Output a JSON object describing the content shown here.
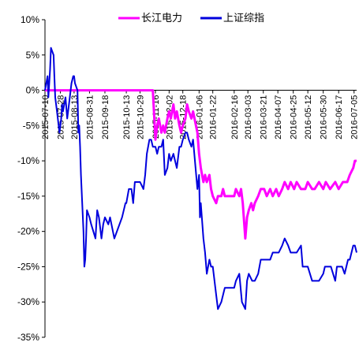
{
  "chart_data": {
    "type": "line",
    "title": "",
    "xlabel": "",
    "ylabel": "",
    "ylim": [
      -35,
      10
    ],
    "y_ticks": [
      10,
      5,
      0,
      -5,
      -10,
      -15,
      -20,
      -25,
      -30,
      -35
    ],
    "y_tick_labels": [
      "10%",
      "5%",
      "0%",
      "-5%",
      "-10%",
      "-15%",
      "-20%",
      "-25%",
      "-30%",
      "-35%"
    ],
    "x_tick_labels": [
      "2015-07-10",
      "2015-07-28",
      "2015-08-13",
      "2015-08-31",
      "2015-09-18",
      "2015-10-13",
      "2015-10-29",
      "2015-11-16",
      "2015-12-02",
      "2015-12-18",
      "2016-01-06",
      "2016-01-22",
      "2016-02-16",
      "2016-03-03",
      "2016-03-21",
      "2016-04-07",
      "2016-04-25",
      "2016-05-12",
      "2016-05-30",
      "2016-06-17",
      "2016-07-05"
    ],
    "x_range": [
      "2015-07-10",
      "2016-07-08"
    ],
    "grid": false,
    "legend_position": "top-center",
    "series": [
      {
        "name": "长江电力",
        "color": "#ff00ff",
        "points": [
          [
            "2015-07-10",
            0
          ],
          [
            "2015-08-13",
            0
          ],
          [
            "2015-09-18",
            0
          ],
          [
            "2015-10-29",
            0
          ],
          [
            "2015-11-13",
            0
          ],
          [
            "2015-11-16",
            -7
          ],
          [
            "2015-11-18",
            -5
          ],
          [
            "2015-11-20",
            -4
          ],
          [
            "2015-11-23",
            -6
          ],
          [
            "2015-11-25",
            -5
          ],
          [
            "2015-11-27",
            -6
          ],
          [
            "2015-11-30",
            -4
          ],
          [
            "2015-12-02",
            -3
          ],
          [
            "2015-12-04",
            -4
          ],
          [
            "2015-12-07",
            -2
          ],
          [
            "2015-12-09",
            -4
          ],
          [
            "2015-12-11",
            -3
          ],
          [
            "2015-12-14",
            -5
          ],
          [
            "2015-12-16",
            -6
          ],
          [
            "2015-12-18",
            -5
          ],
          [
            "2015-12-21",
            -4
          ],
          [
            "2015-12-23",
            -2
          ],
          [
            "2015-12-25",
            -3
          ],
          [
            "2015-12-28",
            -4
          ],
          [
            "2015-12-30",
            -3
          ],
          [
            "2016-01-04",
            -6
          ],
          [
            "2016-01-06",
            -9
          ],
          [
            "2016-01-08",
            -11
          ],
          [
            "2016-01-11",
            -13
          ],
          [
            "2016-01-13",
            -12
          ],
          [
            "2016-01-15",
            -13
          ],
          [
            "2016-01-18",
            -12
          ],
          [
            "2016-01-20",
            -14
          ],
          [
            "2016-01-22",
            -15
          ],
          [
            "2016-01-26",
            -16
          ],
          [
            "2016-01-28",
            -15
          ],
          [
            "2016-02-01",
            -15
          ],
          [
            "2016-02-03",
            -14
          ],
          [
            "2016-02-05",
            -15
          ],
          [
            "2016-02-16",
            -15
          ],
          [
            "2016-02-18",
            -14
          ],
          [
            "2016-02-22",
            -15
          ],
          [
            "2016-02-24",
            -14
          ],
          [
            "2016-02-26",
            -16
          ],
          [
            "2016-02-29",
            -21
          ],
          [
            "2016-03-02",
            -18
          ],
          [
            "2016-03-04",
            -17
          ],
          [
            "2016-03-07",
            -16
          ],
          [
            "2016-03-09",
            -17
          ],
          [
            "2016-03-11",
            -16
          ],
          [
            "2016-03-15",
            -15
          ],
          [
            "2016-03-18",
            -14
          ],
          [
            "2016-03-22",
            -14
          ],
          [
            "2016-03-25",
            -15
          ],
          [
            "2016-03-29",
            -14
          ],
          [
            "2016-04-01",
            -15
          ],
          [
            "2016-04-05",
            -14
          ],
          [
            "2016-04-08",
            -15
          ],
          [
            "2016-04-12",
            -14
          ],
          [
            "2016-04-15",
            -13
          ],
          [
            "2016-04-19",
            -14
          ],
          [
            "2016-04-22",
            -13
          ],
          [
            "2016-04-26",
            -14
          ],
          [
            "2016-04-29",
            -13
          ],
          [
            "2016-05-04",
            -14
          ],
          [
            "2016-05-09",
            -14
          ],
          [
            "2016-05-12",
            -13
          ],
          [
            "2016-05-17",
            -14
          ],
          [
            "2016-05-20",
            -14
          ],
          [
            "2016-05-25",
            -13
          ],
          [
            "2016-05-30",
            -14
          ],
          [
            "2016-06-02",
            -13
          ],
          [
            "2016-06-07",
            -14
          ],
          [
            "2016-06-13",
            -13
          ],
          [
            "2016-06-17",
            -14
          ],
          [
            "2016-06-22",
            -13
          ],
          [
            "2016-06-27",
            -13
          ],
          [
            "2016-06-30",
            -12
          ],
          [
            "2016-07-04",
            -11
          ],
          [
            "2016-07-06",
            -10
          ],
          [
            "2016-07-08",
            -10
          ]
        ]
      },
      {
        "name": "上证综指",
        "color": "#0000dd",
        "points": [
          [
            "2015-07-10",
            0
          ],
          [
            "2015-07-13",
            2
          ],
          [
            "2015-07-14",
            -1
          ],
          [
            "2015-07-15",
            1
          ],
          [
            "2015-07-16",
            3
          ],
          [
            "2015-07-17",
            6
          ],
          [
            "2015-07-20",
            5
          ],
          [
            "2015-07-21",
            2
          ],
          [
            "2015-07-22",
            -1
          ],
          [
            "2015-07-24",
            -3
          ],
          [
            "2015-07-27",
            -6
          ],
          [
            "2015-07-28",
            -5
          ],
          [
            "2015-07-29",
            -4
          ],
          [
            "2015-07-30",
            -2
          ],
          [
            "2015-07-31",
            -3
          ],
          [
            "2015-08-03",
            -1
          ],
          [
            "2015-08-05",
            -4
          ],
          [
            "2015-08-07",
            -2
          ],
          [
            "2015-08-10",
            1
          ],
          [
            "2015-08-12",
            2
          ],
          [
            "2015-08-13",
            2
          ],
          [
            "2015-08-14",
            1
          ],
          [
            "2015-08-17",
            0
          ],
          [
            "2015-08-18",
            -6
          ],
          [
            "2015-08-19",
            -5
          ],
          [
            "2015-08-20",
            -8
          ],
          [
            "2015-08-21",
            -12
          ],
          [
            "2015-08-24",
            -20
          ],
          [
            "2015-08-25",
            -25
          ],
          [
            "2015-08-26",
            -24
          ],
          [
            "2015-08-27",
            -21
          ],
          [
            "2015-08-28",
            -17
          ],
          [
            "2015-08-31",
            -18
          ],
          [
            "2015-09-02",
            -19
          ],
          [
            "2015-09-07",
            -21
          ],
          [
            "2015-09-09",
            -17
          ],
          [
            "2015-09-11",
            -18
          ],
          [
            "2015-09-14",
            -21
          ],
          [
            "2015-09-16",
            -19
          ],
          [
            "2015-09-18",
            -18
          ],
          [
            "2015-09-22",
            -19
          ],
          [
            "2015-09-24",
            -18
          ],
          [
            "2015-09-29",
            -21
          ],
          [
            "2015-10-08",
            -18
          ],
          [
            "2015-10-12",
            -16
          ],
          [
            "2015-10-13",
            -16
          ],
          [
            "2015-10-16",
            -14
          ],
          [
            "2015-10-19",
            -14
          ],
          [
            "2015-10-21",
            -16
          ],
          [
            "2015-10-23",
            -13
          ],
          [
            "2015-10-26",
            -13
          ],
          [
            "2015-10-29",
            -13
          ],
          [
            "2015-11-02",
            -14
          ],
          [
            "2015-11-04",
            -12
          ],
          [
            "2015-11-06",
            -9
          ],
          [
            "2015-11-09",
            -7
          ],
          [
            "2015-11-11",
            -7
          ],
          [
            "2015-11-13",
            -8
          ],
          [
            "2015-11-16",
            -8
          ],
          [
            "2015-11-18",
            -9
          ],
          [
            "2015-11-20",
            -8
          ],
          [
            "2015-11-23",
            -8
          ],
          [
            "2015-11-25",
            -7
          ],
          [
            "2015-11-27",
            -12
          ],
          [
            "2015-11-30",
            -11
          ],
          [
            "2015-12-02",
            -9
          ],
          [
            "2015-12-04",
            -10
          ],
          [
            "2015-12-07",
            -9
          ],
          [
            "2015-12-09",
            -10
          ],
          [
            "2015-12-11",
            -11
          ],
          [
            "2015-12-14",
            -8
          ],
          [
            "2015-12-16",
            -8
          ],
          [
            "2015-12-18",
            -7
          ],
          [
            "2015-12-21",
            -6
          ],
          [
            "2015-12-23",
            -6
          ],
          [
            "2015-12-25",
            -7
          ],
          [
            "2015-12-28",
            -8
          ],
          [
            "2015-12-30",
            -7
          ],
          [
            "2016-01-04",
            -14
          ],
          [
            "2016-01-06",
            -12
          ],
          [
            "2016-01-07",
            -18
          ],
          [
            "2016-01-08",
            -16
          ],
          [
            "2016-01-11",
            -21
          ],
          [
            "2016-01-13",
            -23
          ],
          [
            "2016-01-15",
            -26
          ],
          [
            "2016-01-18",
            -24
          ],
          [
            "2016-01-20",
            -25
          ],
          [
            "2016-01-22",
            -25
          ],
          [
            "2016-01-26",
            -29
          ],
          [
            "2016-01-28",
            -31
          ],
          [
            "2016-02-01",
            -30
          ],
          [
            "2016-02-03",
            -29
          ],
          [
            "2016-02-05",
            -28
          ],
          [
            "2016-02-16",
            -28
          ],
          [
            "2016-02-18",
            -27
          ],
          [
            "2016-02-22",
            -26
          ],
          [
            "2016-02-25",
            -30
          ],
          [
            "2016-02-29",
            -31
          ],
          [
            "2016-03-02",
            -27
          ],
          [
            "2016-03-04",
            -26
          ],
          [
            "2016-03-08",
            -27
          ],
          [
            "2016-03-11",
            -27
          ],
          [
            "2016-03-15",
            -26
          ],
          [
            "2016-03-18",
            -24
          ],
          [
            "2016-03-22",
            -24
          ],
          [
            "2016-03-25",
            -24
          ],
          [
            "2016-03-29",
            -24
          ],
          [
            "2016-04-01",
            -23
          ],
          [
            "2016-04-05",
            -23
          ],
          [
            "2016-04-08",
            -23
          ],
          [
            "2016-04-12",
            -22
          ],
          [
            "2016-04-15",
            -21
          ],
          [
            "2016-04-19",
            -22
          ],
          [
            "2016-04-22",
            -23
          ],
          [
            "2016-04-26",
            -23
          ],
          [
            "2016-04-29",
            -23
          ],
          [
            "2016-05-04",
            -22
          ],
          [
            "2016-05-06",
            -25
          ],
          [
            "2016-05-10",
            -25
          ],
          [
            "2016-05-12",
            -25
          ],
          [
            "2016-05-17",
            -27
          ],
          [
            "2016-05-20",
            -27
          ],
          [
            "2016-05-25",
            -27
          ],
          [
            "2016-05-30",
            -26
          ],
          [
            "2016-06-01",
            -25
          ],
          [
            "2016-06-06",
            -25
          ],
          [
            "2016-06-08",
            -25
          ],
          [
            "2016-06-13",
            -27
          ],
          [
            "2016-06-15",
            -25
          ],
          [
            "2016-06-17",
            -25
          ],
          [
            "2016-06-21",
            -25
          ],
          [
            "2016-06-24",
            -26
          ],
          [
            "2016-06-28",
            -24
          ],
          [
            "2016-06-30",
            -24
          ],
          [
            "2016-07-04",
            -22
          ],
          [
            "2016-07-06",
            -22
          ],
          [
            "2016-07-08",
            -23
          ]
        ]
      }
    ]
  }
}
